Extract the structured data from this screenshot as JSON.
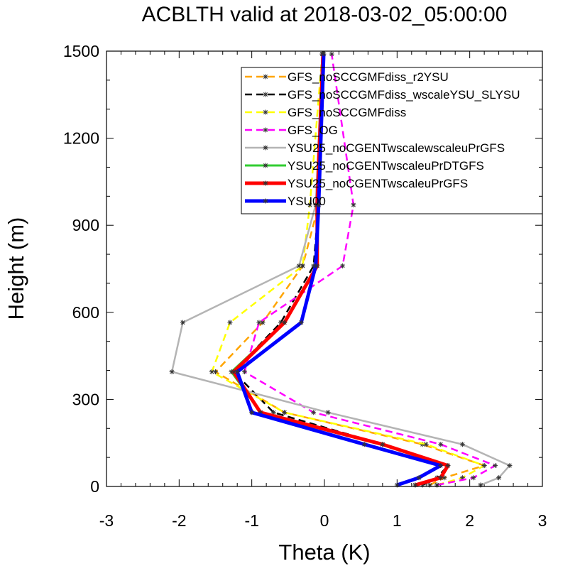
{
  "chart_data": {
    "type": "line",
    "title": "ACBLTH valid at 2018-03-02_05:00:00",
    "xlabel": "Theta (K)",
    "ylabel": "Height (m)",
    "xlim": [
      -3,
      3
    ],
    "ylim": [
      0,
      1500
    ],
    "xticks": [
      -3,
      -2,
      -1,
      0,
      1,
      2,
      3
    ],
    "yticks": [
      0,
      300,
      600,
      900,
      1200,
      1500
    ],
    "grid": false,
    "legend_position": "top-right",
    "series": [
      {
        "name": "GFS_noSCCGMFdiss_r2YSU",
        "color": "#FFA500",
        "dash": "dashed",
        "width": "thin",
        "points": [
          [
            1.45,
            5
          ],
          [
            1.65,
            30
          ],
          [
            2.2,
            72
          ],
          [
            1.35,
            145
          ],
          [
            -0.55,
            255
          ],
          [
            -1.5,
            395
          ],
          [
            -0.85,
            565
          ],
          [
            -0.3,
            760
          ],
          [
            -0.08,
            970
          ],
          [
            -0.03,
            1490
          ]
        ]
      },
      {
        "name": "GFS_noSCCGMFdiss_wscaleYSU_SLYSU",
        "color": "#000000",
        "dash": "dashed",
        "width": "thin",
        "points": [
          [
            1.35,
            5
          ],
          [
            1.55,
            30
          ],
          [
            1.7,
            72
          ],
          [
            0.8,
            145
          ],
          [
            -0.7,
            255
          ],
          [
            -1.25,
            395
          ],
          [
            -0.6,
            565
          ],
          [
            -0.15,
            760
          ],
          [
            -0.08,
            970
          ],
          [
            -0.02,
            1490
          ]
        ]
      },
      {
        "name": "GFS_noSCCGMFdiss",
        "color": "#FFFF00",
        "dash": "dashed",
        "width": "thin",
        "points": [
          [
            1.55,
            5
          ],
          [
            1.9,
            30
          ],
          [
            2.2,
            72
          ],
          [
            1.4,
            145
          ],
          [
            -0.55,
            255
          ],
          [
            -1.55,
            395
          ],
          [
            -1.3,
            565
          ],
          [
            -0.3,
            760
          ],
          [
            -0.2,
            970
          ],
          [
            -0.03,
            1490
          ]
        ]
      },
      {
        "name": "GFS_OG",
        "color": "#FF00FF",
        "dash": "dashed",
        "width": "thin",
        "points": [
          [
            1.55,
            5
          ],
          [
            2.05,
            30
          ],
          [
            2.35,
            72
          ],
          [
            1.6,
            145
          ],
          [
            -0.15,
            255
          ],
          [
            -1.1,
            395
          ],
          [
            -0.9,
            565
          ],
          [
            0.25,
            760
          ],
          [
            0.4,
            970
          ],
          [
            0.1,
            1490
          ]
        ]
      },
      {
        "name": "YSU25_noCGENTwscalewscaleuPrGFS",
        "color": "#B4B4B4",
        "dash": "solid",
        "width": "thin",
        "points": [
          [
            2.15,
            5
          ],
          [
            2.4,
            30
          ],
          [
            2.55,
            72
          ],
          [
            1.9,
            145
          ],
          [
            0.05,
            255
          ],
          [
            -2.1,
            395
          ],
          [
            -1.95,
            565
          ],
          [
            -0.35,
            760
          ],
          [
            -0.12,
            970
          ],
          [
            -0.03,
            1490
          ]
        ]
      },
      {
        "name": "YSU25_noCGENTwscaleuPrDTGFS",
        "color": "#32CD32",
        "dash": "solid",
        "width": "medium",
        "points": [
          [
            1.25,
            5
          ],
          [
            1.6,
            30
          ],
          [
            1.7,
            72
          ],
          [
            0.8,
            145
          ],
          [
            -0.88,
            255
          ],
          [
            -1.28,
            395
          ],
          [
            -0.55,
            565
          ],
          [
            -0.1,
            760
          ],
          [
            -0.1,
            970
          ],
          [
            -0.02,
            1490
          ]
        ]
      },
      {
        "name": "YSU25_noCGENTwscaleuPrGFS",
        "color": "#FF0000",
        "dash": "solid",
        "width": "thick",
        "points": [
          [
            1.25,
            5
          ],
          [
            1.6,
            30
          ],
          [
            1.7,
            72
          ],
          [
            0.8,
            145
          ],
          [
            -0.88,
            255
          ],
          [
            -1.25,
            395
          ],
          [
            -0.55,
            565
          ],
          [
            -0.1,
            760
          ],
          [
            -0.1,
            970
          ],
          [
            -0.02,
            1490
          ]
        ]
      },
      {
        "name": "YSU00",
        "color": "#0000FF",
        "dash": "solid",
        "width": "thick",
        "points": [
          [
            1.0,
            5
          ],
          [
            1.3,
            30
          ],
          [
            1.6,
            72
          ],
          [
            0.55,
            145
          ],
          [
            -1.0,
            255
          ],
          [
            -1.2,
            395
          ],
          [
            -0.32,
            565
          ],
          [
            -0.12,
            760
          ],
          [
            -0.08,
            970
          ],
          [
            -0.01,
            1490
          ]
        ]
      }
    ]
  }
}
